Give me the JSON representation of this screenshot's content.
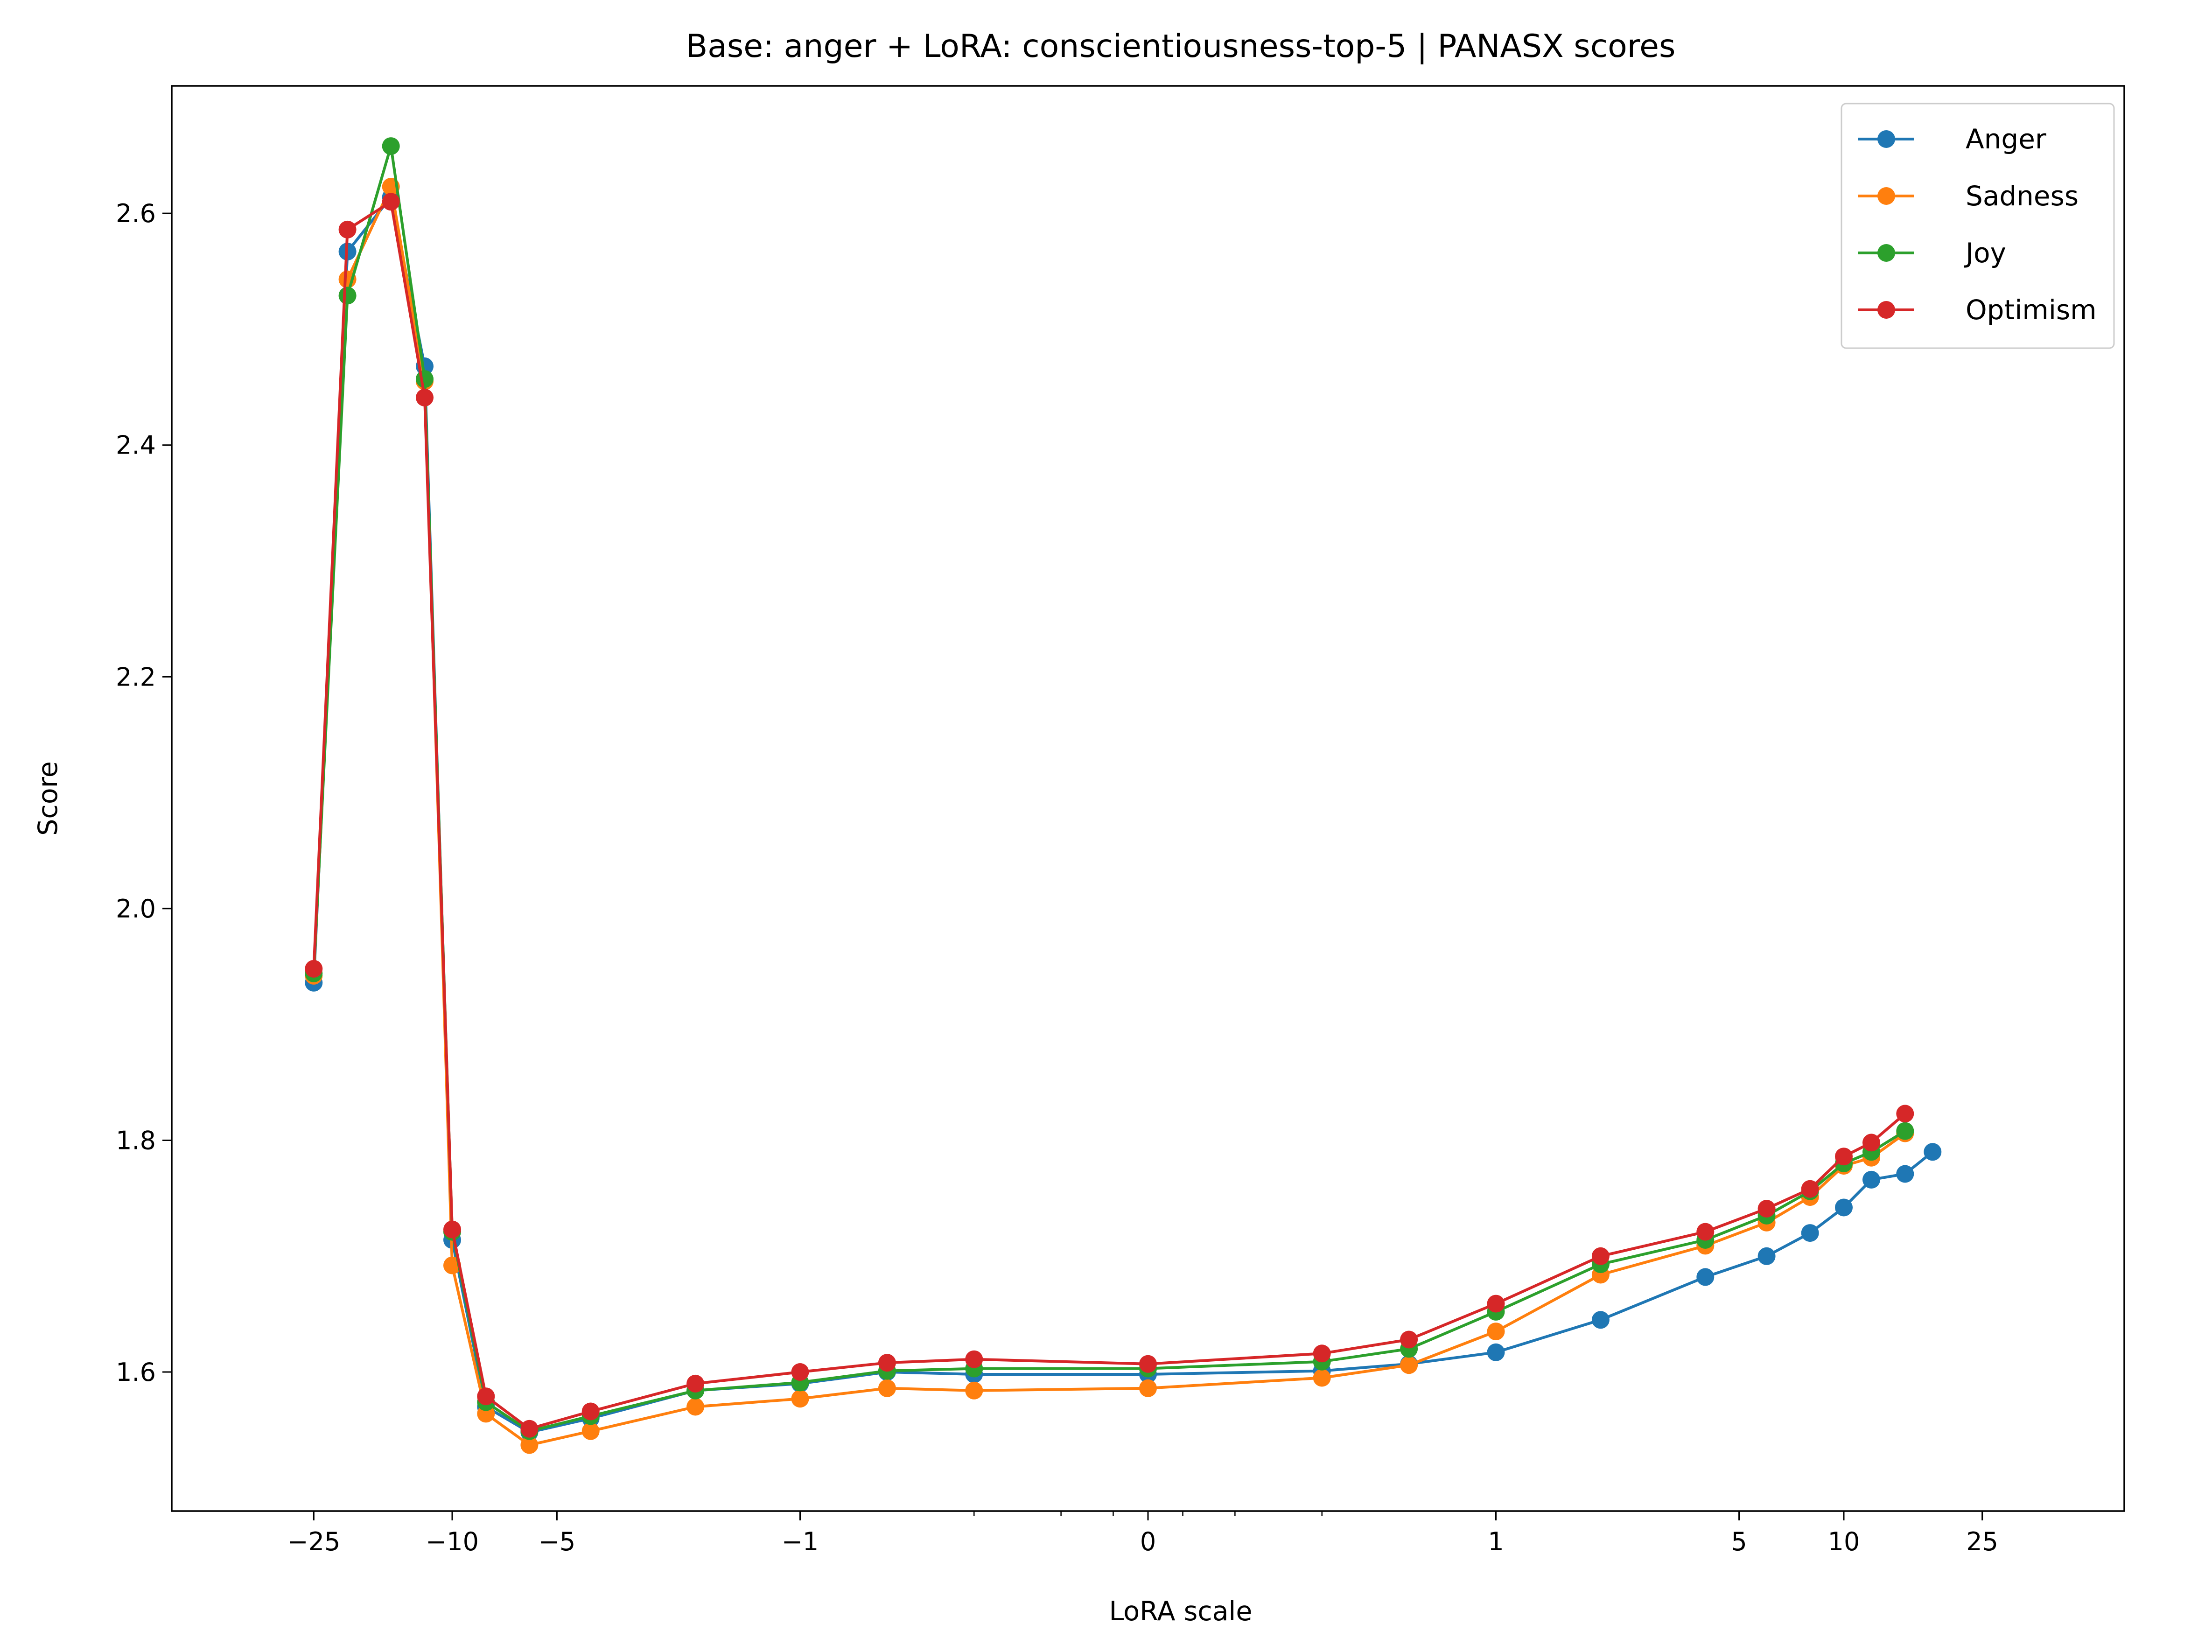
{
  "chart_data": {
    "type": "line",
    "title": "Base: anger + LoRA: conscientiousness-top-5 | PANASX scores",
    "xlabel": "LoRA scale",
    "ylabel": "Score",
    "xscale": "symlog",
    "ylim": [
      1.48,
      2.71
    ],
    "xlim": [
      -64,
      64
    ],
    "grid": false,
    "legend_position": "top-right",
    "x_major_ticks": [
      {
        "value": -25,
        "label": "−25"
      },
      {
        "value": -10,
        "label": "−10"
      },
      {
        "value": -5,
        "label": "−5"
      },
      {
        "value": -1,
        "label": "−1"
      },
      {
        "value": 0,
        "label": "0"
      },
      {
        "value": 1,
        "label": "1"
      },
      {
        "value": 5,
        "label": "5"
      },
      {
        "value": 10,
        "label": "10"
      },
      {
        "value": 25,
        "label": "25"
      }
    ],
    "x_minor_ticks": [
      -0.5,
      -0.25,
      -0.1,
      0.1,
      0.25,
      0.5
    ],
    "y_ticks": [
      {
        "value": 1.6,
        "label": "1.6"
      },
      {
        "value": 1.8,
        "label": "1.8"
      },
      {
        "value": 2.0,
        "label": "2.0"
      },
      {
        "value": 2.2,
        "label": "2.2"
      },
      {
        "value": 2.4,
        "label": "2.4"
      },
      {
        "value": 2.6,
        "label": "2.6"
      }
    ],
    "x": [
      -25,
      -20,
      -15,
      -12,
      -10,
      -8,
      -6,
      -4,
      -2,
      -1,
      -0.75,
      -0.5,
      0,
      0.5,
      0.75,
      1,
      2,
      4,
      6,
      8,
      10,
      12,
      15,
      18,
      20,
      25
    ],
    "series": [
      {
        "name": "Anger",
        "color": "#1f77b4",
        "values": [
          1.936,
          2.567,
          2.614,
          2.468,
          1.714,
          1.57,
          1.548,
          1.56,
          1.584,
          1.59,
          1.6,
          1.598,
          1.598,
          1.601,
          1.607,
          1.617,
          1.645,
          1.682,
          1.7,
          1.72,
          1.742,
          1.766,
          1.771,
          1.79,
          null,
          null
        ]
      },
      {
        "name": "Sadness",
        "color": "#ff7f0e",
        "values": [
          1.942,
          2.543,
          2.623,
          2.455,
          1.692,
          1.564,
          1.537,
          1.549,
          1.57,
          1.577,
          1.586,
          1.584,
          1.586,
          1.595,
          1.606,
          1.635,
          1.684,
          1.709,
          1.729,
          1.751,
          1.778,
          1.785,
          1.806,
          null,
          null,
          null
        ]
      },
      {
        "name": "Joy",
        "color": "#2ca02c",
        "values": [
          1.944,
          2.529,
          2.658,
          2.457,
          1.721,
          1.574,
          1.549,
          1.562,
          1.584,
          1.591,
          1.601,
          1.603,
          1.603,
          1.609,
          1.62,
          1.652,
          1.693,
          1.714,
          1.735,
          1.756,
          1.78,
          1.79,
          1.808,
          null,
          null,
          null
        ]
      },
      {
        "name": "Optimism",
        "color": "#d62728",
        "values": [
          1.948,
          2.586,
          2.61,
          2.441,
          1.723,
          1.579,
          1.551,
          1.566,
          1.59,
          1.6,
          1.608,
          1.611,
          1.607,
          1.616,
          1.628,
          1.659,
          1.7,
          1.721,
          1.741,
          1.758,
          1.786,
          1.798,
          1.823,
          null,
          null,
          null
        ]
      }
    ]
  }
}
